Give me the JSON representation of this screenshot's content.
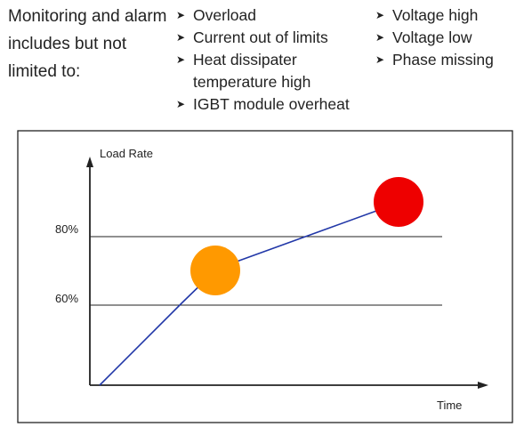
{
  "intro": "Monitoring and alarm includes but not limited to:",
  "list_left": [
    {
      "icon": "arrowhead-bullet-icon",
      "text": "Overload"
    },
    {
      "icon": "arrowhead-bullet-icon",
      "text": "Current out of limits"
    },
    {
      "icon": "arrowhead-bullet-icon",
      "text": "Heat dissipater temperature high"
    },
    {
      "icon": "arrowhead-bullet-icon",
      "text": "IGBT module overheat"
    }
  ],
  "list_right": [
    {
      "icon": "arrowhead-bullet-icon",
      "text": "Voltage high"
    },
    {
      "icon": "arrowhead-bullet-icon",
      "text": "Voltage low"
    },
    {
      "icon": "arrowhead-bullet-icon",
      "text": "Phase missing"
    }
  ],
  "diagram": {
    "y_axis_label": "Load Rate",
    "x_axis_label": "Time",
    "thresholds": [
      {
        "label": "80%",
        "value": 80
      },
      {
        "label": "60%",
        "value": 60
      }
    ],
    "markers": [
      {
        "color": "#ff9900"
      },
      {
        "color": "#ee0000"
      }
    ],
    "line_color": "#2238a8"
  }
}
